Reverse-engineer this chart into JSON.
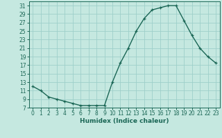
{
  "x": [
    0,
    1,
    2,
    3,
    4,
    5,
    6,
    7,
    8,
    9,
    10,
    11,
    12,
    13,
    14,
    15,
    16,
    17,
    18,
    19,
    20,
    21,
    22,
    23
  ],
  "y": [
    12,
    11,
    9.5,
    9,
    8.5,
    8,
    7.5,
    7.5,
    7.5,
    7.5,
    13,
    17.5,
    21,
    25,
    28,
    30,
    30.5,
    31,
    31,
    27.5,
    24,
    21,
    19,
    17.5
  ],
  "line_color": "#1a6655",
  "marker": "+",
  "marker_size": 3.5,
  "marker_linewidth": 0.9,
  "bg_color": "#c5e8e0",
  "grid_color": "#9ecfca",
  "xlabel": "Humidex (Indice chaleur)",
  "ylim": [
    7,
    32
  ],
  "xlim": [
    -0.5,
    23.5
  ],
  "yticks": [
    7,
    9,
    11,
    13,
    15,
    17,
    19,
    21,
    23,
    25,
    27,
    29,
    31
  ],
  "xticks": [
    0,
    1,
    2,
    3,
    4,
    5,
    6,
    7,
    8,
    9,
    10,
    11,
    12,
    13,
    14,
    15,
    16,
    17,
    18,
    19,
    20,
    21,
    22,
    23
  ],
  "label_fontsize": 6.5,
  "tick_fontsize": 5.5,
  "linewidth": 1.0
}
